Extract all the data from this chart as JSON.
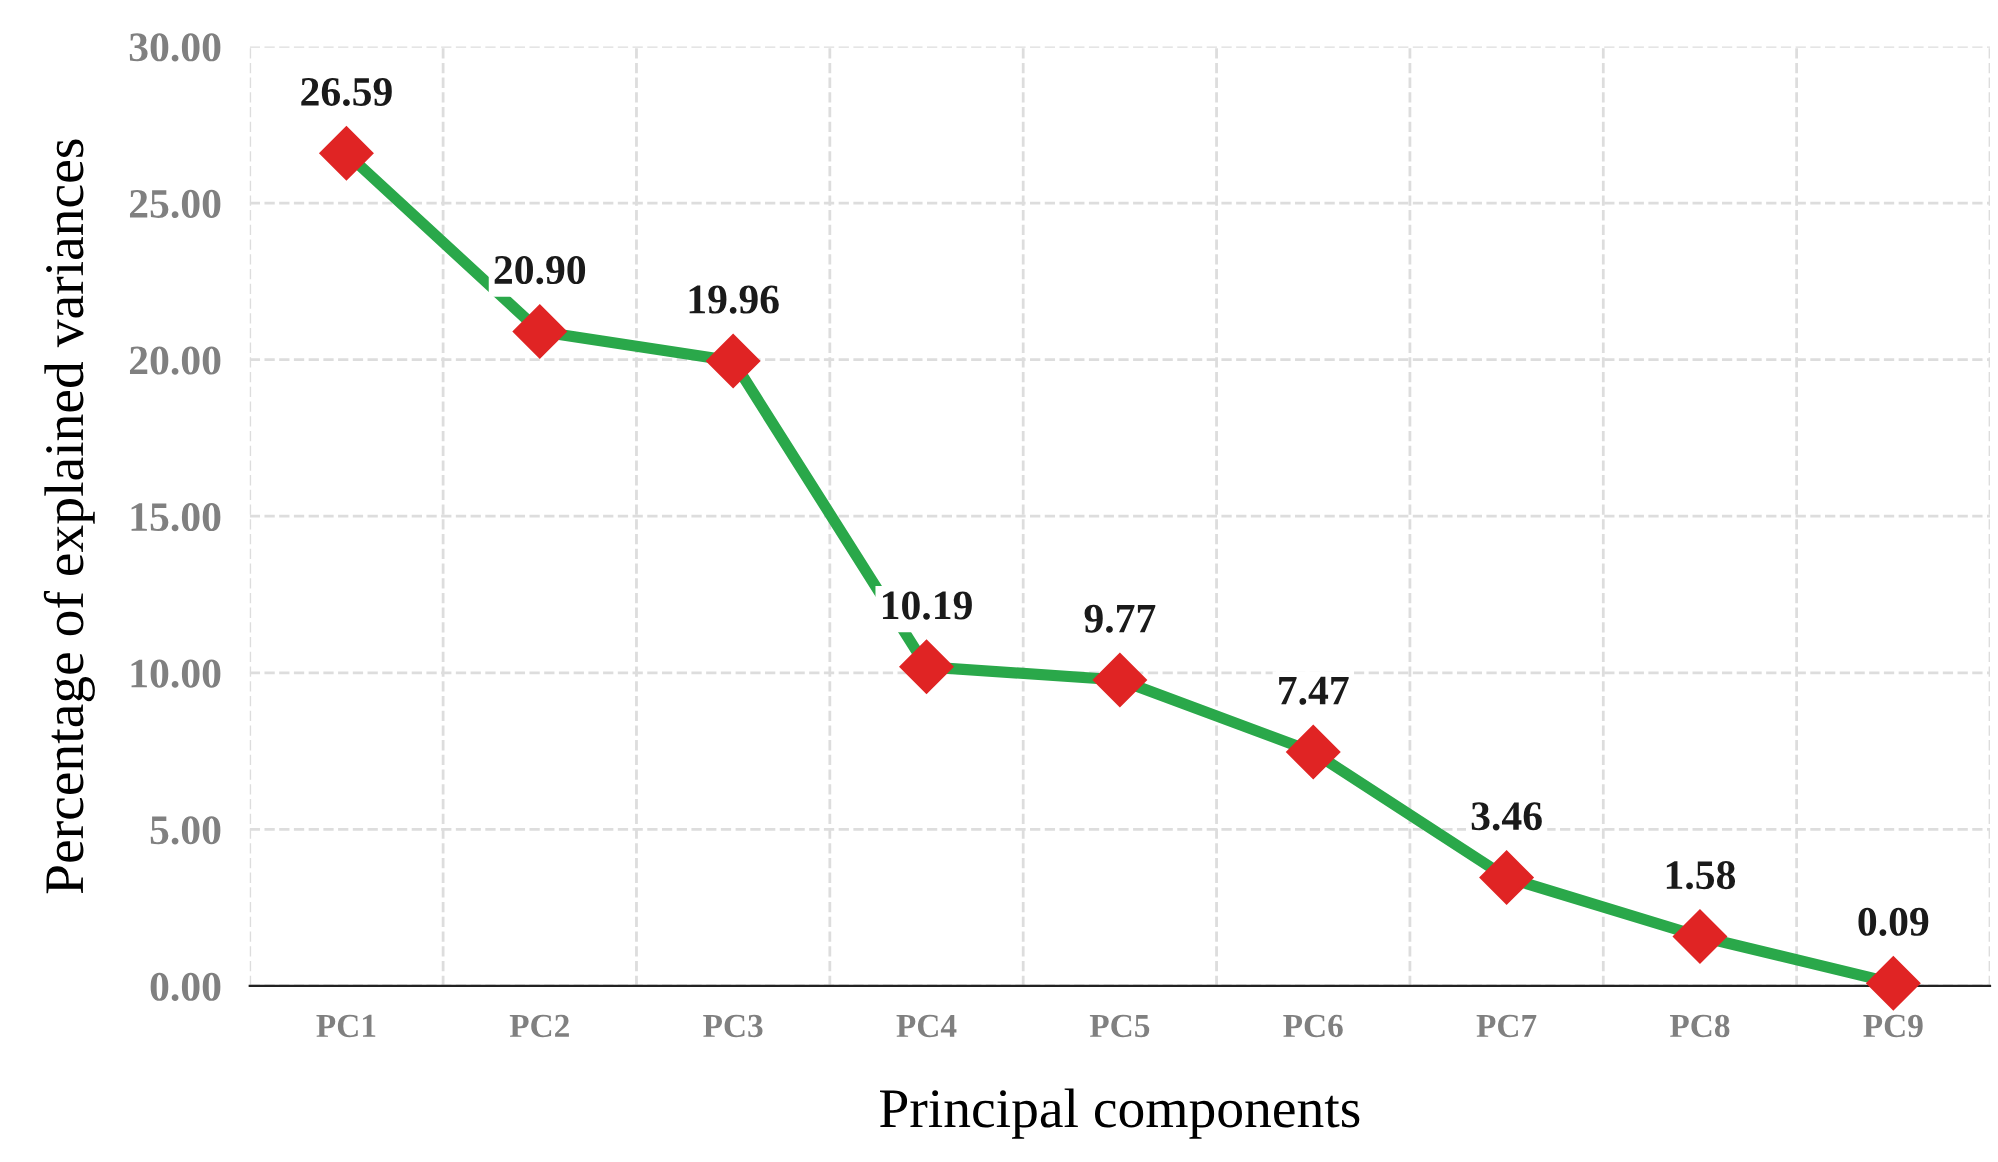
{
  "chart_data": {
    "type": "line",
    "xlabel": "Principal components",
    "ylabel": "Percentage of explained variances",
    "categories": [
      "PC1",
      "PC2",
      "PC3",
      "PC4",
      "PC5",
      "PC6",
      "PC7",
      "PC8",
      "PC9"
    ],
    "series": [
      {
        "color": "#2aa84a",
        "colors": [
          "#e02424",
          "#e02424",
          "#e02424",
          "#e02424",
          "#e02424",
          "#e02424",
          "#e02424",
          "#e02424",
          "#e02424"
        ],
        "values": [
          26.59,
          20.9,
          19.96,
          10.19,
          9.77,
          7.47,
          3.46,
          1.58,
          0.09
        ]
      }
    ],
    "value_labels": [
      "26.59",
      "20.90",
      "19.96",
      "10.19",
      "9.77",
      "7.47",
      "3.46",
      "1.58",
      "0.09"
    ],
    "ylim": [
      0,
      30
    ],
    "yticks": [
      {
        "value": 0,
        "label": "0.00"
      },
      {
        "value": 5,
        "label": "5.00"
      },
      {
        "value": 10,
        "label": "10.00"
      },
      {
        "value": 15,
        "label": "15.00"
      },
      {
        "value": 20,
        "label": "20.00"
      },
      {
        "value": 25,
        "label": "25.00"
      },
      {
        "value": 30,
        "label": "30.00"
      }
    ],
    "grid": true,
    "marker": "diamond",
    "line_style": "solid",
    "legend": false
  }
}
